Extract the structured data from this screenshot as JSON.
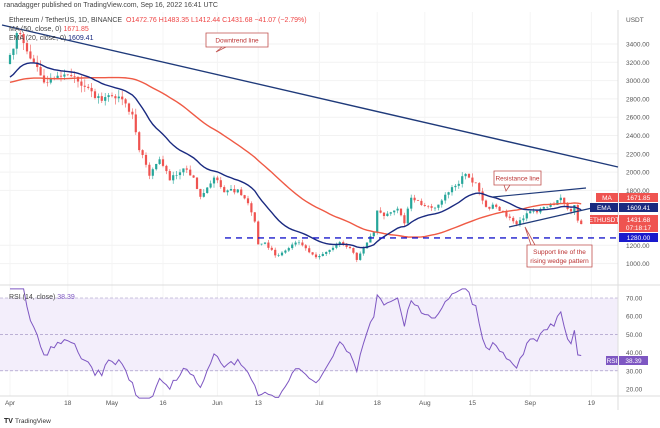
{
  "publisher_line": "ranadagger published on TradingView.com, Sep 16, 2022 16:41 UTC",
  "legend": {
    "symbol": "Ethereum / TetherUS, 1D, BINANCE",
    "open": "O1472.76",
    "high": "H1483.35",
    "low": "L1412.44",
    "close": "C1431.68",
    "change": "−41.07 (−2.79%)",
    "ma_label": "MA (50, close, 0)",
    "ma_value": "1671.85",
    "ema_label": "EMA (20, close, 0)",
    "ema_value": "1609.41",
    "rsi_label": "RSI (14, close)",
    "rsi_value": "38.39"
  },
  "annotations": {
    "downtrend": "Downtrend line",
    "resistance": "Resistance line",
    "support": [
      "Support line of the",
      "rising wedge pattern"
    ]
  },
  "price_tags": {
    "ma": {
      "label": "MA",
      "value": "1671.85"
    },
    "ema": {
      "label": "EMA",
      "value": "1609.41"
    },
    "last": {
      "label": "ETHUSDT",
      "value": "1431.68",
      "countdown": "07:18:17"
    },
    "level": {
      "value": "1280.00"
    },
    "rsi": {
      "label": "RSI",
      "value": "38.39"
    }
  },
  "branding": "TradingView",
  "colors": {
    "up": "#26a69a",
    "down": "#ef5350",
    "ma": "#ef5a45",
    "ema": "#1a2a80",
    "trend": "#1f3a7a",
    "rsi": "#7e57c2",
    "rsi_band": "#f1ecfa",
    "level": "#1a1acc"
  },
  "chart_data": {
    "type": "candlestick",
    "currency": "USDT",
    "y_ticks": [
      "3400.00",
      "3200.00",
      "3000.00",
      "2800.00",
      "2600.00",
      "2400.00",
      "2200.00",
      "2000.00",
      "1800.00",
      "1200.00",
      "1000.00"
    ],
    "ylim": [
      900,
      3550
    ],
    "x_ticks": [
      "Apr",
      "18",
      "May",
      "16",
      "Jun",
      "13",
      "Jul",
      "18",
      "Aug",
      "15",
      "Sep",
      "19"
    ],
    "x_tick_dates": [
      "2022-04-01",
      "2022-04-18",
      "2022-05-01",
      "2022-05-16",
      "2022-06-01",
      "2022-06-13",
      "2022-07-01",
      "2022-07-18",
      "2022-08-01",
      "2022-08-15",
      "2022-09-01",
      "2022-09-19"
    ],
    "approx_closes": [
      [
        "2022-04-01",
        3280
      ],
      [
        "2022-04-03",
        3520
      ],
      [
        "2022-04-05",
        3410
      ],
      [
        "2022-04-08",
        3200
      ],
      [
        "2022-04-11",
        2980
      ],
      [
        "2022-04-14",
        3020
      ],
      [
        "2022-04-18",
        3060
      ],
      [
        "2022-04-21",
        2990
      ],
      [
        "2022-04-24",
        2920
      ],
      [
        "2022-04-26",
        2810
      ],
      [
        "2022-04-29",
        2820
      ],
      [
        "2022-05-01",
        2830
      ],
      [
        "2022-05-05",
        2750
      ],
      [
        "2022-05-07",
        2630
      ],
      [
        "2022-05-09",
        2240
      ],
      [
        "2022-05-11",
        2080
      ],
      [
        "2022-05-12",
        1960
      ],
      [
        "2022-05-15",
        2140
      ],
      [
        "2022-05-18",
        1910
      ],
      [
        "2022-05-22",
        2040
      ],
      [
        "2022-05-25",
        1940
      ],
      [
        "2022-05-27",
        1730
      ],
      [
        "2022-05-31",
        1940
      ],
      [
        "2022-06-03",
        1780
      ],
      [
        "2022-06-07",
        1810
      ],
      [
        "2022-06-10",
        1660
      ],
      [
        "2022-06-12",
        1460
      ],
      [
        "2022-06-13",
        1210
      ],
      [
        "2022-06-15",
        1230
      ],
      [
        "2022-06-18",
        1090
      ],
      [
        "2022-06-20",
        1120
      ],
      [
        "2022-06-24",
        1230
      ],
      [
        "2022-06-26",
        1200
      ],
      [
        "2022-06-30",
        1070
      ],
      [
        "2022-07-04",
        1150
      ],
      [
        "2022-07-07",
        1235
      ],
      [
        "2022-07-10",
        1170
      ],
      [
        "2022-07-12",
        1040
      ],
      [
        "2022-07-13",
        1110
      ],
      [
        "2022-07-15",
        1230
      ],
      [
        "2022-07-17",
        1340
      ],
      [
        "2022-07-18",
        1580
      ],
      [
        "2022-07-20",
        1520
      ],
      [
        "2022-07-24",
        1600
      ],
      [
        "2022-07-26",
        1440
      ],
      [
        "2022-07-28",
        1720
      ],
      [
        "2022-08-01",
        1630
      ],
      [
        "2022-08-04",
        1610
      ],
      [
        "2022-08-08",
        1780
      ],
      [
        "2022-08-10",
        1850
      ],
      [
        "2022-08-13",
        1980
      ],
      [
        "2022-08-14",
        1940
      ],
      [
        "2022-08-16",
        1880
      ],
      [
        "2022-08-19",
        1620
      ],
      [
        "2022-08-22",
        1620
      ],
      [
        "2022-08-26",
        1500
      ],
      [
        "2022-08-28",
        1430
      ],
      [
        "2022-08-31",
        1550
      ],
      [
        "2022-09-03",
        1560
      ],
      [
        "2022-09-06",
        1620
      ],
      [
        "2022-09-08",
        1640
      ],
      [
        "2022-09-10",
        1720
      ],
      [
        "2022-09-13",
        1570
      ],
      [
        "2022-09-14",
        1640
      ],
      [
        "2022-09-15",
        1470
      ],
      [
        "2022-09-16",
        1431.68
      ]
    ],
    "horizontal_level": 1280,
    "indicators": [
      "MA 50",
      "EMA 20"
    ],
    "rsi": {
      "period": 14,
      "y_ticks": [
        "70.00",
        "60.00",
        "50.00",
        "40.00",
        "30.00",
        "20.00"
      ],
      "band": [
        30,
        70
      ],
      "last": 38.39
    }
  }
}
